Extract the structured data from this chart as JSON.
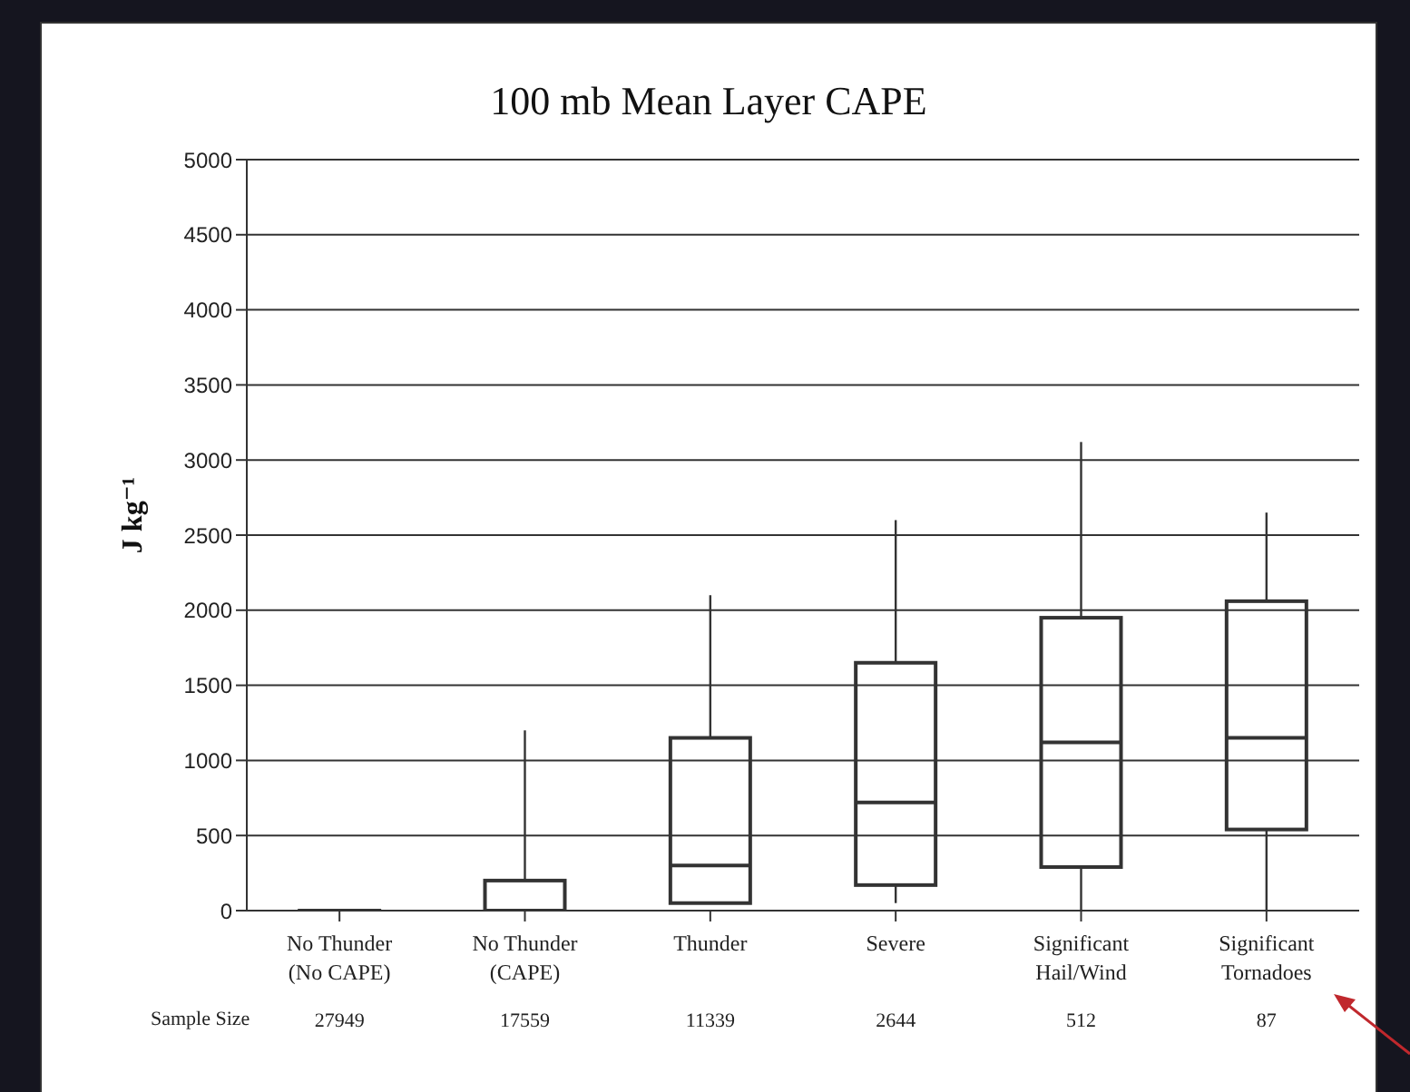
{
  "chart_data": {
    "type": "box",
    "title": "100 mb Mean Layer CAPE",
    "ylabel": "J kg⁻¹",
    "categories": [
      "No Thunder\n(No CAPE)",
      "No Thunder\n(CAPE)",
      "Thunder",
      "Severe",
      "Significant\nHail/Wind",
      "Significant\nTornadoes"
    ],
    "series": [
      {
        "color": "#333333",
        "boxes": [
          {
            "low": 0,
            "q1": 0,
            "median": 0,
            "q3": 0,
            "high": 0
          },
          {
            "low": 0,
            "q1": 0,
            "median": 0,
            "q3": 200,
            "high": 1200
          },
          {
            "low": 50,
            "q1": 50,
            "median": 300,
            "q3": 1150,
            "high": 2100
          },
          {
            "low": 50,
            "q1": 170,
            "median": 720,
            "q3": 1650,
            "high": 2600
          },
          {
            "low": 0,
            "q1": 290,
            "median": 1120,
            "q3": 1950,
            "high": 3120
          },
          {
            "low": 0,
            "q1": 540,
            "median": 1150,
            "q3": 2060,
            "high": 2650
          }
        ]
      }
    ],
    "ylim": [
      0,
      5000
    ],
    "yticks": [
      0,
      500,
      1000,
      1500,
      2000,
      2500,
      3000,
      3500,
      4000,
      4500,
      5000
    ],
    "grid": "y",
    "annotations": [
      "Sample Size",
      "27949",
      "17559",
      "11339",
      "2644",
      "512",
      "87"
    ]
  }
}
